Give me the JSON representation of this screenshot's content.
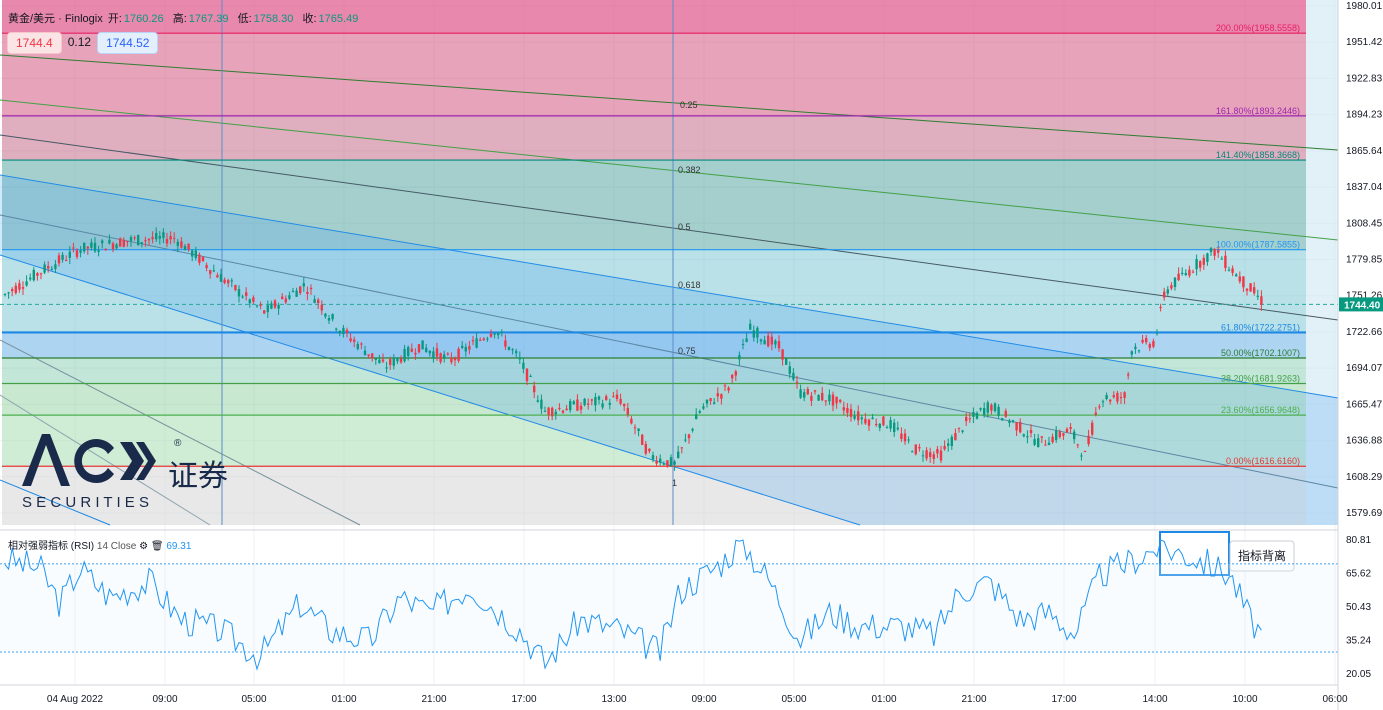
{
  "header": {
    "symbol": "黄金/美元 · Finlogix",
    "open_label": "开:",
    "open": "1760.26",
    "high_label": "高:",
    "high": "1767.39",
    "low_label": "低:",
    "low": "1758.30",
    "close_label": "收:",
    "close": "1765.49"
  },
  "trade": {
    "sell": "1744.4",
    "spread": "0.12",
    "buy": "1744.52"
  },
  "rsi_header": {
    "name": "相对强弱指标 (RSI)",
    "params": "14 Close",
    "value": "69.31"
  },
  "logo": {
    "brand": "ACY",
    "cn": "证券",
    "sub": "S E C U R I T I E S",
    "reg": "®"
  },
  "annotation": "指标背离",
  "chart_data": {
    "type": "candlestick",
    "price_axis_ticks": [
      "1980.01",
      "1951.42",
      "1922.83",
      "1894.23",
      "1865.64",
      "1837.04",
      "1808.45",
      "1779.85",
      "1751.26",
      "1722.66",
      "1694.07",
      "1665.47",
      "1636.88",
      "1608.29",
      "1579.69"
    ],
    "last_price": "1744.40",
    "price_range": [
      1579.69,
      1980.01
    ],
    "time_axis_ticks": [
      "04 Aug 2022",
      "09:00",
      "05:00",
      "01:00",
      "21:00",
      "17:00",
      "13:00",
      "09:00",
      "05:00",
      "01:00",
      "21:00",
      "17:00",
      "14:00",
      "10:00",
      "06:00"
    ],
    "fib_retracement": [
      {
        "label": "200.00%(1958.5558)",
        "value": 1958.5558,
        "color": "#e91e63"
      },
      {
        "label": "161.80%(1893.2446)",
        "value": 1893.2446,
        "color": "#9c27b0"
      },
      {
        "label": "141.40%(1858.3668)",
        "value": 1858.3668,
        "color": "#00897b"
      },
      {
        "label": "100.00%(1787.5855)",
        "value": 1787.5855,
        "color": "#2196f3"
      },
      {
        "label": "61.80%(1722.2751)",
        "value": 1722.2751,
        "color": "#1e88e5"
      },
      {
        "label": "50.00%(1702.1007)",
        "value": 1702.1007,
        "color": "#2e7d32"
      },
      {
        "label": "38.20%(1681.9263)",
        "value": 1681.9263,
        "color": "#43a047"
      },
      {
        "label": "23.60%(1656.9648)",
        "value": 1656.9648,
        "color": "#4caf50"
      },
      {
        "label": "0.00%(1616.6160)",
        "value": 1616.616,
        "color": "#e53935"
      }
    ],
    "fib_channel_labels": [
      "0.25",
      "0.382",
      "0.5",
      "0.618",
      "0.75",
      "1"
    ],
    "rsi_axis_ticks": [
      "80.81",
      "65.62",
      "50.43",
      "35.24",
      "20.05"
    ],
    "rsi_range": [
      20.05,
      80.81
    ]
  }
}
